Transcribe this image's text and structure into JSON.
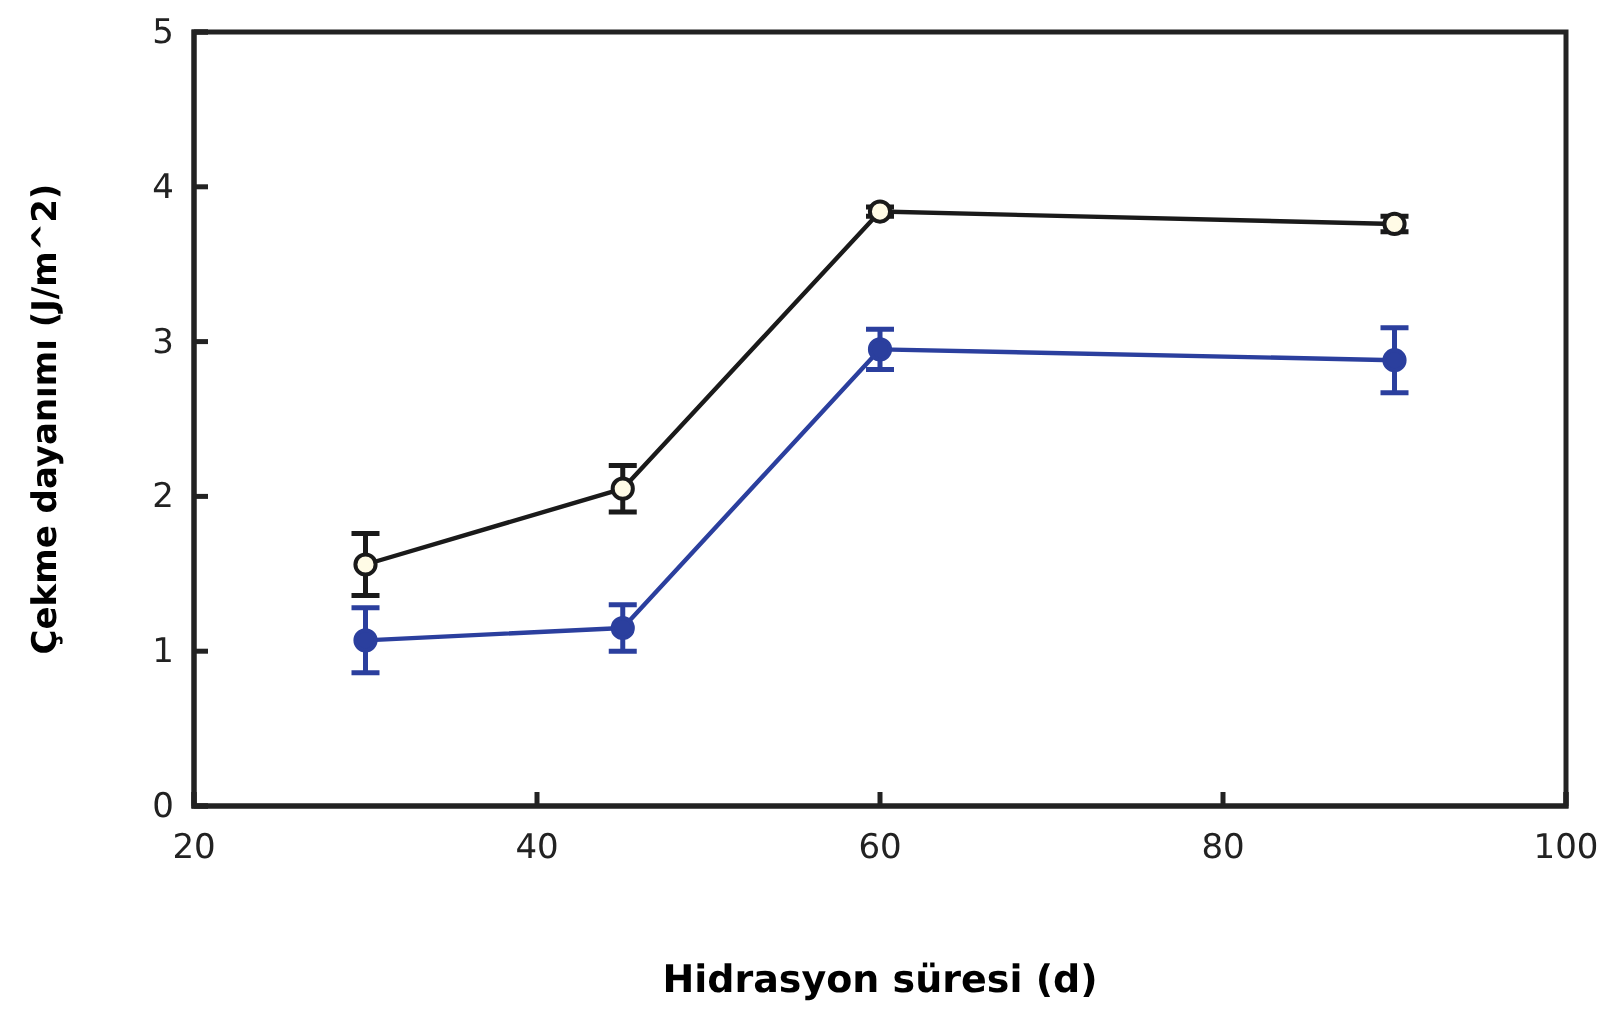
{
  "chart_data": {
    "type": "line",
    "xlabel": "Hidrasyon süresi (d)",
    "ylabel": "Çekme dayanımı (J/m^2)",
    "x": [
      30,
      45,
      60,
      90
    ],
    "series": [
      {
        "color": "#1a1a1a",
        "values": [
          1.56,
          2.05,
          3.84,
          3.76
        ],
        "errors": [
          0.2,
          0.15,
          0.03,
          0.05
        ]
      },
      {
        "color": "#2b3f9e",
        "values": [
          1.07,
          1.15,
          2.95,
          2.88
        ],
        "errors": [
          0.21,
          0.15,
          0.13,
          0.21
        ]
      }
    ],
    "xlim": [
      20,
      100
    ],
    "xticks": [
      20,
      40,
      60,
      80,
      100
    ],
    "ylim": [
      0,
      5
    ],
    "yticks": [
      0,
      1,
      2,
      3,
      4,
      5
    ],
    "grid": false,
    "marker": "circle",
    "line_style": "solid"
  }
}
